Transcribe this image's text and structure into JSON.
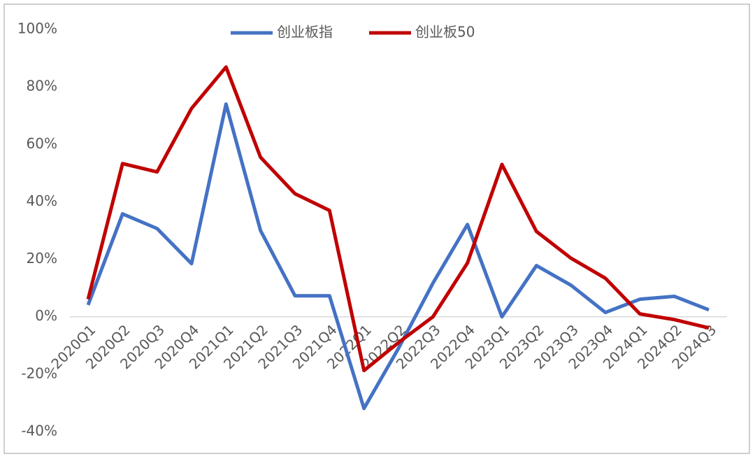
{
  "chart_data": {
    "type": "line",
    "categories": [
      "2020Q1",
      "2020Q2",
      "2020Q3",
      "2020Q4",
      "2021Q1",
      "2021Q2",
      "2021Q3",
      "2021Q4",
      "2022Q1",
      "2022Q2",
      "2022Q3",
      "2022Q4",
      "2023Q1",
      "2023Q2",
      "2023Q3",
      "2023Q4",
      "2024Q1",
      "2024Q2",
      "2024Q3"
    ],
    "series": [
      {
        "name": "创业板指",
        "color": "#4472c4",
        "values": [
          4.1,
          35.8,
          30.7,
          18.5,
          74,
          30,
          7.3,
          7.3,
          -31.9,
          -11,
          11.7,
          32.1,
          0,
          17.8,
          11,
          1.5,
          6.1,
          7.1,
          2.4
        ]
      },
      {
        "name": "创业板50",
        "color": "#c00000",
        "values": [
          6.1,
          53.3,
          50.4,
          72.5,
          86.9,
          55.5,
          42.8,
          37,
          -18.7,
          -9,
          0,
          18.7,
          53,
          29.7,
          20.4,
          13.4,
          1,
          -1,
          -3.9
        ]
      }
    ],
    "ylim": [
      -40,
      100
    ],
    "yticks": [
      {
        "value": -40,
        "label": "-40%"
      },
      {
        "value": -20,
        "label": "-20%"
      },
      {
        "value": 0,
        "label": "0%"
      },
      {
        "value": 20,
        "label": "20%"
      },
      {
        "value": 40,
        "label": "40%"
      },
      {
        "value": 60,
        "label": "60%"
      },
      {
        "value": 80,
        "label": "80%"
      },
      {
        "value": 100,
        "label": "100%"
      }
    ],
    "grid": false,
    "legend": "top"
  }
}
